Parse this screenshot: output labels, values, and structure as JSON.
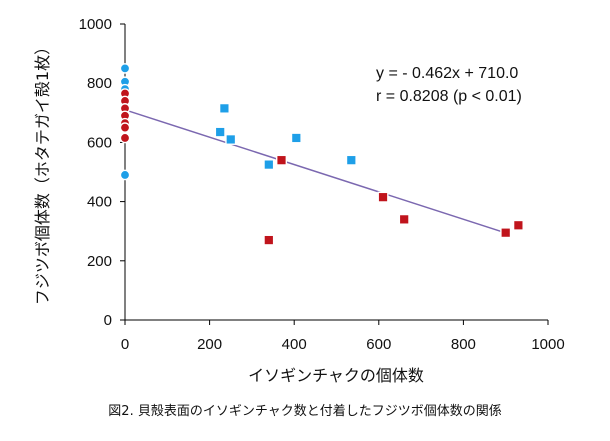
{
  "chart_data": {
    "type": "scatter",
    "xlabel": "イソギンチャクの個体数",
    "ylabel": "フジツボ個体数（ホタテガイ殻1枚）",
    "xlim": [
      0,
      1000
    ],
    "ylim": [
      0,
      1000
    ],
    "xticks": [
      "0",
      "200",
      "400",
      "600",
      "800",
      "1000"
    ],
    "yticks": [
      "0",
      "200",
      "400",
      "600",
      "800",
      "1000"
    ],
    "grid": false,
    "legend": "none",
    "annotations": [
      "y = - 0.462x + 710.0",
      "r = 0.8208 (p < 0.01)"
    ],
    "trendline": {
      "slope": -0.462,
      "intercept": 710.0,
      "x_range": [
        0,
        900
      ],
      "color": "#7b68b0"
    },
    "series": [
      {
        "marker": "circle",
        "color": "#1e9fe8",
        "points": [
          [
            0,
            850
          ],
          [
            0,
            805
          ],
          [
            0,
            780
          ],
          [
            0,
            490
          ]
        ]
      },
      {
        "marker": "circle",
        "color": "#c0141c",
        "points": [
          [
            0,
            765
          ],
          [
            0,
            740
          ],
          [
            0,
            715
          ],
          [
            0,
            690
          ],
          [
            0,
            665
          ],
          [
            0,
            650
          ],
          [
            0,
            615
          ]
        ]
      },
      {
        "marker": "square",
        "color": "#1e9fe8",
        "points": [
          [
            235,
            715
          ],
          [
            225,
            635
          ],
          [
            250,
            610
          ],
          [
            405,
            615
          ],
          [
            340,
            525
          ],
          [
            535,
            540
          ]
        ]
      },
      {
        "marker": "square",
        "color": "#c0141c",
        "points": [
          [
            370,
            540
          ],
          [
            610,
            415
          ],
          [
            660,
            340
          ],
          [
            340,
            270
          ],
          [
            900,
            295
          ],
          [
            930,
            320
          ]
        ]
      }
    ]
  },
  "caption": "図2. 貝殻表面のイソギンチャク数と付着したフジツボ個体数の関係"
}
